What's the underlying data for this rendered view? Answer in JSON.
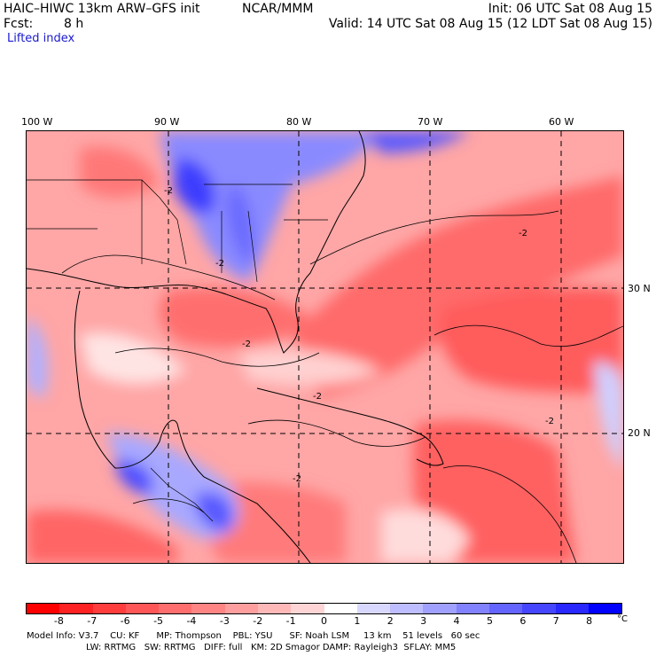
{
  "header": {
    "model_title": "HAIC–HIWC 13km ARW–GFS init",
    "org": "NCAR/MMM",
    "init": "Init: 06 UTC Sat 08 Aug 15",
    "fcst_label": "Fcst:",
    "fcst_value": "8 h",
    "valid": "Valid: 14 UTC Sat 08 Aug 15 (12 LDT Sat 08 Aug 15)",
    "field": "Lifted index"
  },
  "map": {
    "lon_labels": [
      "100 W",
      "90 W",
      "80 W",
      "70 W",
      "60 W"
    ],
    "lat_labels": [
      "30 N",
      "20 N"
    ],
    "contour_labels": [
      "-2",
      "-2",
      "-2",
      "-2",
      "-2",
      "-2",
      "-2"
    ]
  },
  "colorbar": {
    "ticks": [
      "-8",
      "-7",
      "-6",
      "-5",
      "-4",
      "-3",
      "-2",
      "-1",
      "0",
      "1",
      "2",
      "3",
      "4",
      "5",
      "6",
      "7",
      "8"
    ],
    "unit": "°C",
    "colors": [
      "#ff0000",
      "#ff2222",
      "#ff3d3d",
      "#ff5757",
      "#ff6e6e",
      "#ff8585",
      "#ff9e9e",
      "#ffb8b8",
      "#ffd4d4",
      "#ffffff",
      "#d8d8ff",
      "#bdbdff",
      "#a0a0ff",
      "#8282ff",
      "#6464ff",
      "#4646ff",
      "#2828ff",
      "#0000ff"
    ]
  },
  "model_info": {
    "line1": "Model Info: V3.7    CU: KF      MP: Thompson    PBL: YSU      SF: Noah LSM     13 km    51 levels   60 sec",
    "line2": "LW: RRTMG   SW: RRTMG   DIFF: full   KM: 2D Smagor DAMP: Rayleigh3  SFLAY: MM5"
  }
}
